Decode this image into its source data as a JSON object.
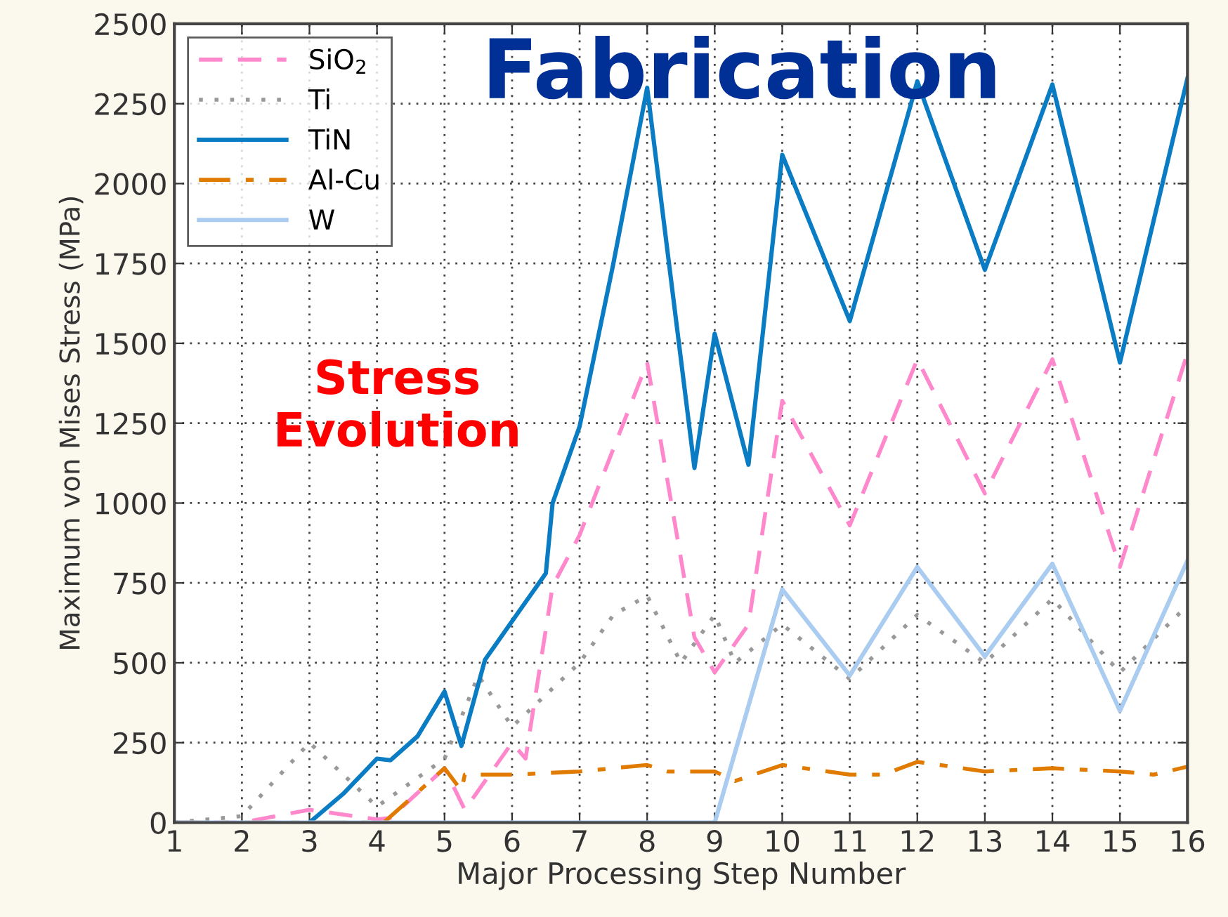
{
  "chart_data": {
    "type": "line",
    "xlabel": "Major Processing Step Number",
    "ylabel": "Maximum von Mises Stress (MPa)",
    "annotations": [
      "Fabrication",
      "Stress\nEvolution"
    ],
    "xlim": [
      1,
      16
    ],
    "xticks": [
      1,
      2,
      3,
      4,
      5,
      6,
      7,
      8,
      9,
      10,
      11,
      12,
      13,
      14,
      15,
      16
    ],
    "ylim": [
      0,
      2500
    ],
    "yticks": [
      0,
      250,
      500,
      750,
      1000,
      1250,
      1500,
      1750,
      2000,
      2250,
      2500
    ],
    "grid": true,
    "legend": "top left",
    "marker": "none",
    "series": [
      {
        "name": "SiO$_{2}$",
        "color": "#ff88cc",
        "line_style": "dashed",
        "x": [
          1,
          2,
          3,
          4,
          4.2,
          5,
          5.3,
          6,
          6.2,
          6.6,
          7,
          8,
          8.7,
          9,
          9.5,
          10,
          11,
          12,
          13,
          14,
          15,
          16
        ],
        "values": [
          0,
          0,
          40,
          10,
          15,
          170,
          40,
          250,
          200,
          740,
          900,
          1440,
          580,
          470,
          620,
          1320,
          930,
          1450,
          1030,
          1450,
          800,
          1470
        ]
      },
      {
        "name": "Ti",
        "color": "#999999",
        "line_style": "dotted",
        "x": [
          1,
          2,
          3,
          4,
          5,
          5.5,
          6,
          6.5,
          7,
          7.5,
          8,
          8.5,
          9,
          9.3,
          10,
          11,
          12,
          13,
          14,
          15,
          16
        ],
        "values": [
          0,
          20,
          250,
          50,
          200,
          460,
          300,
          400,
          500,
          650,
          710,
          500,
          650,
          500,
          620,
          450,
          650,
          500,
          700,
          470,
          680
        ]
      },
      {
        "name": "TiN",
        "color": "#0a7cc4",
        "line_style": "solid",
        "x": [
          3,
          3.5,
          4,
          4.2,
          4.6,
          5,
          5.25,
          5.6,
          6,
          6.5,
          6.6,
          7,
          7.5,
          8,
          8.7,
          9,
          9.5,
          10,
          11,
          12,
          13,
          14,
          15,
          16
        ],
        "values": [
          0,
          90,
          200,
          195,
          270,
          410,
          240,
          510,
          630,
          780,
          1000,
          1240,
          1750,
          2300,
          1110,
          1530,
          1120,
          2090,
          1570,
          2320,
          1730,
          2310,
          1440,
          2330
        ]
      },
      {
        "name": "Al-Cu",
        "color": "#e07b00",
        "line_style": "dashdot",
        "x": [
          1,
          4.1,
          5,
          5.25,
          5.3,
          6,
          7,
          8,
          8.3,
          9,
          9.3,
          10,
          11,
          11.5,
          12,
          13,
          14,
          15,
          15.5,
          16
        ],
        "values": [
          0,
          0,
          170,
          100,
          150,
          150,
          160,
          180,
          160,
          160,
          130,
          180,
          150,
          150,
          190,
          160,
          170,
          160,
          150,
          175
        ]
      },
      {
        "name": "W",
        "color": "#aaccf0",
        "line_style": "solid",
        "x": [
          1,
          9,
          10,
          11,
          12,
          13,
          14,
          15,
          16
        ],
        "values": [
          0,
          0,
          730,
          460,
          800,
          520,
          810,
          350,
          820
        ]
      }
    ]
  }
}
